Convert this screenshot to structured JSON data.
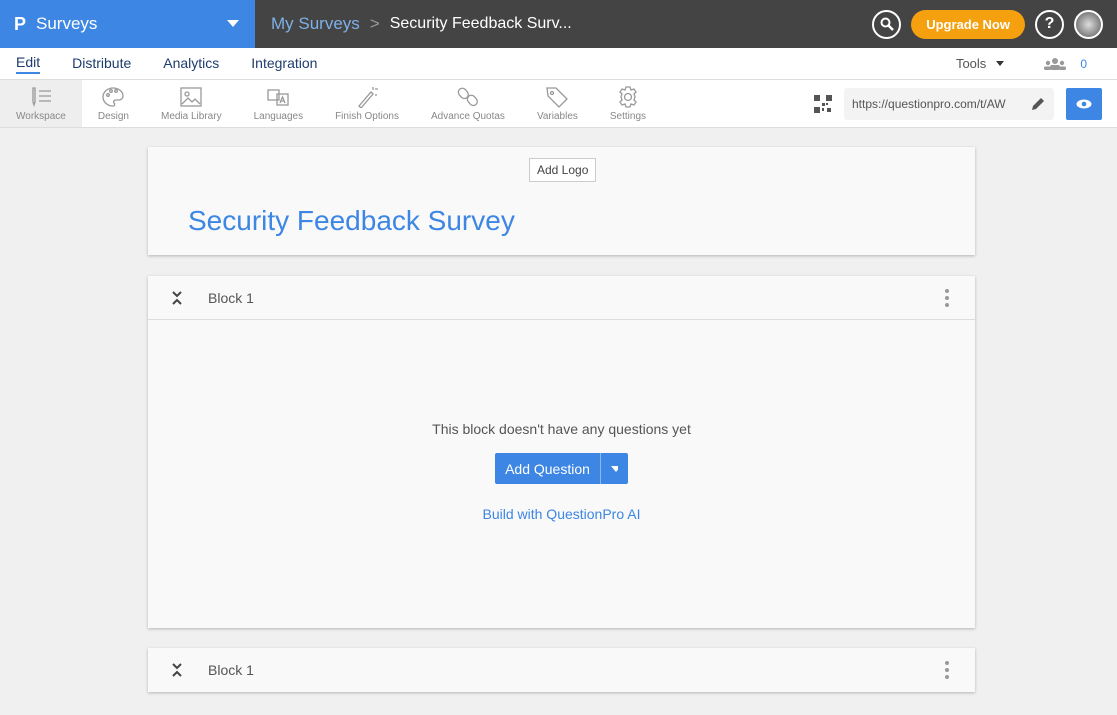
{
  "topbar": {
    "brand_logo": "P",
    "brand": "Surveys",
    "breadcrumb": {
      "root": "My Surveys",
      "separator": ">",
      "current": "Security Feedback Surv..."
    },
    "upgrade": "Upgrade Now",
    "help": "?"
  },
  "nav": {
    "tabs": [
      {
        "label": "Edit",
        "active": true
      },
      {
        "label": "Distribute"
      },
      {
        "label": "Analytics"
      },
      {
        "label": "Integration"
      }
    ],
    "tools": "Tools",
    "user_count": "0"
  },
  "toolbar": {
    "items": [
      {
        "label": "Workspace",
        "icon": "workspace-icon",
        "active": true
      },
      {
        "label": "Design",
        "icon": "palette-icon"
      },
      {
        "label": "Media Library",
        "icon": "image-icon"
      },
      {
        "label": "Languages",
        "icon": "translate-icon"
      },
      {
        "label": "Finish Options",
        "icon": "magic-wand-icon"
      },
      {
        "label": "Advance Quotas",
        "icon": "chain-icon"
      },
      {
        "label": "Variables",
        "icon": "tag-icon"
      },
      {
        "label": "Settings",
        "icon": "gear-icon"
      }
    ],
    "url": "https://questionpro.com/t/AW"
  },
  "survey": {
    "add_logo": "Add Logo",
    "title": "Security Feedback Survey"
  },
  "blocks": [
    {
      "name": "Block 1",
      "empty_text": "This block doesn't have any questions yet",
      "add_question": "Add Question",
      "ai_link": "Build with QuestionPro AI"
    },
    {
      "name": "Block 1"
    }
  ],
  "colors": {
    "accent": "#3d86e3",
    "upgrade": "#f4a00f",
    "topbar": "#444444"
  }
}
